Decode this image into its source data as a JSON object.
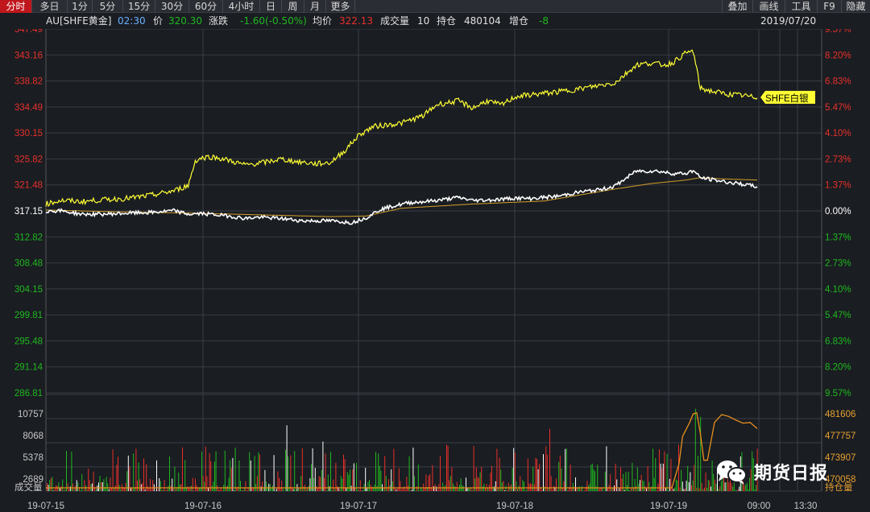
{
  "tabs": [
    "分时",
    "多日",
    "1分",
    "5分",
    "15分",
    "30分",
    "60分",
    "4小时",
    "日",
    "周",
    "月",
    "更多"
  ],
  "right_tabs": [
    "叠加",
    "画线",
    "工具",
    "F9",
    "隐藏"
  ],
  "info": {
    "symbol": "AU[SHFE黄金]",
    "time": "02:30",
    "price_label": "价",
    "price": "320.30",
    "change_label": "涨跌",
    "change": "-1.60(-0.50%)",
    "avg_label": "均价",
    "avg": "322.13",
    "volume_label": "成交量",
    "volume": "10",
    "oi_label": "持仓",
    "oi": "480104",
    "oi_change_label": "增仓",
    "oi_change": "-8",
    "date": "2019/07/20"
  },
  "colors": {
    "up": "#e8302a",
    "down": "#1fb81f",
    "neutral": "#ffffff",
    "gold_line": "#ffff33",
    "silver_line": "#ffffff",
    "avg_line": "#d6a02a",
    "oi_line": "#e8901c",
    "grid": "#3a3d44",
    "axis_text_vol": "#c8c8c8",
    "oi_text": "#e8a030"
  },
  "overlay_label": "SHFE白银",
  "watermark": "期货日报",
  "chart_data": {
    "type": "line",
    "price_axis": {
      "ticks": [
        "347.49",
        "343.16",
        "338.82",
        "334.49",
        "330.15",
        "325.82",
        "321.48",
        "317.15",
        "312.82",
        "308.48",
        "304.15",
        "299.81",
        "295.48",
        "291.14",
        "286.81"
      ],
      "values": [
        347.49,
        343.16,
        338.82,
        334.49,
        330.15,
        325.82,
        321.48,
        317.15,
        312.82,
        308.48,
        304.15,
        299.81,
        295.48,
        291.14,
        286.81
      ],
      "reference": 317.15
    },
    "percent_axis": {
      "ticks": [
        "9.57%",
        "8.20%",
        "6.83%",
        "5.47%",
        "4.10%",
        "2.73%",
        "1.37%",
        "0.00%",
        "1.37%",
        "2.73%",
        "4.10%",
        "5.47%",
        "6.83%",
        "8.20%",
        "9.57%"
      ]
    },
    "volume_axis": {
      "ticks": [
        "10757",
        "8068",
        "5378",
        "2689"
      ],
      "label": "成交量"
    },
    "oi_axis": {
      "ticks": [
        "481606",
        "477757",
        "473907",
        "470058"
      ],
      "label": "持仓量"
    },
    "x_labels": [
      "19-07-15",
      "19-07-16",
      "19-07-17",
      "19-07-18",
      "19-07-19",
      "09:00",
      "13:30"
    ],
    "series": [
      {
        "name": "SHFE白银",
        "x": [
          0,
          2,
          5,
          8,
          12,
          15,
          18,
          20,
          21,
          22,
          23,
          25,
          28,
          31,
          33,
          35,
          38,
          40,
          42,
          44,
          46,
          50,
          53,
          55,
          57,
          58,
          60,
          62,
          64,
          66,
          68,
          72,
          75,
          80,
          83,
          85,
          87,
          88,
          90,
          91,
          92,
          94,
          96,
          98,
          100
        ],
        "y": [
          318.3,
          318.9,
          318.7,
          319.0,
          319.3,
          319.8,
          320.5,
          321.4,
          325.5,
          326.0,
          326.2,
          325.8,
          324.8,
          325.3,
          325.8,
          325.4,
          325.0,
          325.2,
          327.2,
          329.8,
          331.2,
          331.8,
          333.0,
          334.9,
          335.3,
          335.5,
          334.3,
          335.5,
          334.8,
          336.2,
          336.5,
          337.0,
          337.5,
          338.5,
          341.5,
          341.8,
          341.5,
          341.8,
          343.5,
          343.8,
          337.6,
          337.0,
          336.6,
          336.4,
          336.0
        ],
        "color": "gold_line"
      },
      {
        "x": [
          0,
          2,
          5,
          8,
          12,
          15,
          18,
          20,
          22,
          25,
          28,
          30,
          33,
          36,
          40,
          43,
          45,
          47,
          49,
          51,
          55,
          58,
          60,
          63,
          66,
          68,
          72,
          75,
          78,
          80,
          83,
          86,
          88,
          90,
          91,
          92,
          94,
          96,
          98,
          100
        ],
        "y": [
          317.1,
          317.2,
          316.6,
          316.6,
          316.8,
          316.9,
          317.2,
          316.6,
          316.7,
          316.4,
          315.9,
          316.1,
          315.9,
          315.5,
          315.5,
          315.2,
          316.0,
          317.4,
          318.0,
          318.5,
          318.9,
          319.4,
          318.9,
          319.0,
          319.3,
          319.2,
          319.6,
          320.3,
          320.7,
          321.3,
          323.8,
          323.8,
          323.4,
          323.4,
          323.9,
          322.7,
          322.3,
          321.9,
          321.6,
          321.2
        ],
        "color": "silver_line"
      },
      {
        "name": "均价",
        "x": [
          0,
          10,
          20,
          30,
          40,
          45,
          50,
          60,
          70,
          80,
          85,
          90,
          92,
          95,
          100
        ],
        "y": [
          317.3,
          317.0,
          316.8,
          316.5,
          316.2,
          316.3,
          317.6,
          318.3,
          318.8,
          320.8,
          321.7,
          322.3,
          322.7,
          322.5,
          322.3
        ],
        "color": "avg_line"
      }
    ],
    "oi_series": {
      "x": [
        0,
        88,
        89,
        89.5,
        90.5,
        91,
        91.5,
        92,
        92.5,
        93,
        94,
        95,
        96,
        97,
        98,
        99,
        100
      ],
      "y": [
        470058,
        470058,
        474000,
        478500,
        480800,
        482200,
        482400,
        479000,
        474600,
        474600,
        480800,
        482100,
        481800,
        481200,
        480700,
        480800,
        479800
      ]
    },
    "volume_bars_note": "",
    "grid": true
  }
}
